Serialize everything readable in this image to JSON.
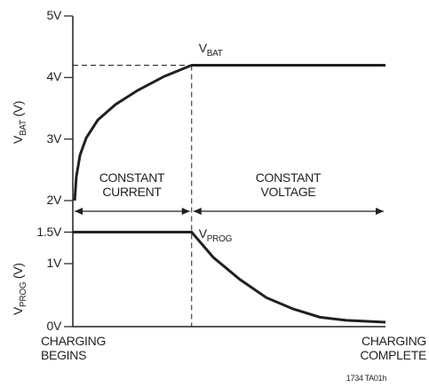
{
  "chart_data": [
    {
      "type": "line",
      "ylabel": {
        "text": "V",
        "sub": "BAT",
        "unit": " (V)"
      },
      "xlim": [
        0,
        100
      ],
      "ylim": [
        2,
        5
      ],
      "yticks": [
        {
          "value": 2,
          "label": "2V"
        },
        {
          "value": 3,
          "label": "3V"
        },
        {
          "value": 4,
          "label": "4V"
        },
        {
          "value": 5,
          "label": "5V"
        }
      ],
      "annotations": [
        "CONSTANT\nCURRENT",
        "CONSTANT\nVOLTAGE"
      ],
      "series": [
        {
          "name": {
            "text": "V",
            "sub": "BAT"
          },
          "color": "#231f20",
          "x": [
            0.6,
            1.1,
            2.3,
            4.3,
            8.0,
            13.6,
            20.7,
            29.3,
            38,
            100
          ],
          "values": [
            2.0,
            2.38,
            2.74,
            3.02,
            3.31,
            3.56,
            3.79,
            4.02,
            4.2,
            4.2
          ]
        }
      ]
    },
    {
      "type": "line",
      "ylabel": {
        "text": "V",
        "sub": "PROG",
        "unit": " (V)"
      },
      "xlim": [
        0,
        100
      ],
      "ylim": [
        0,
        2
      ],
      "yticks": [
        {
          "value": 0,
          "label": "0V"
        },
        {
          "value": 1,
          "label": "1V"
        },
        {
          "value": 1.5,
          "label": "1.5V"
        }
      ],
      "xticks": [
        {
          "value": 0,
          "label": "CHARGING\nBEGINS"
        },
        {
          "value": 100,
          "label": "CHARGING\nCOMPLETE"
        }
      ],
      "series": [
        {
          "name": {
            "text": "V",
            "sub": "PROG"
          },
          "color": "#231f20",
          "x": [
            0,
            38,
            44.9,
            53.4,
            61.9,
            70.5,
            79,
            87.5,
            100
          ],
          "values": [
            1.5,
            1.5,
            1.1,
            0.75,
            0.46,
            0.28,
            0.15,
            0.1,
            0.07
          ]
        }
      ]
    }
  ],
  "figure_id": "1734 TA01h"
}
